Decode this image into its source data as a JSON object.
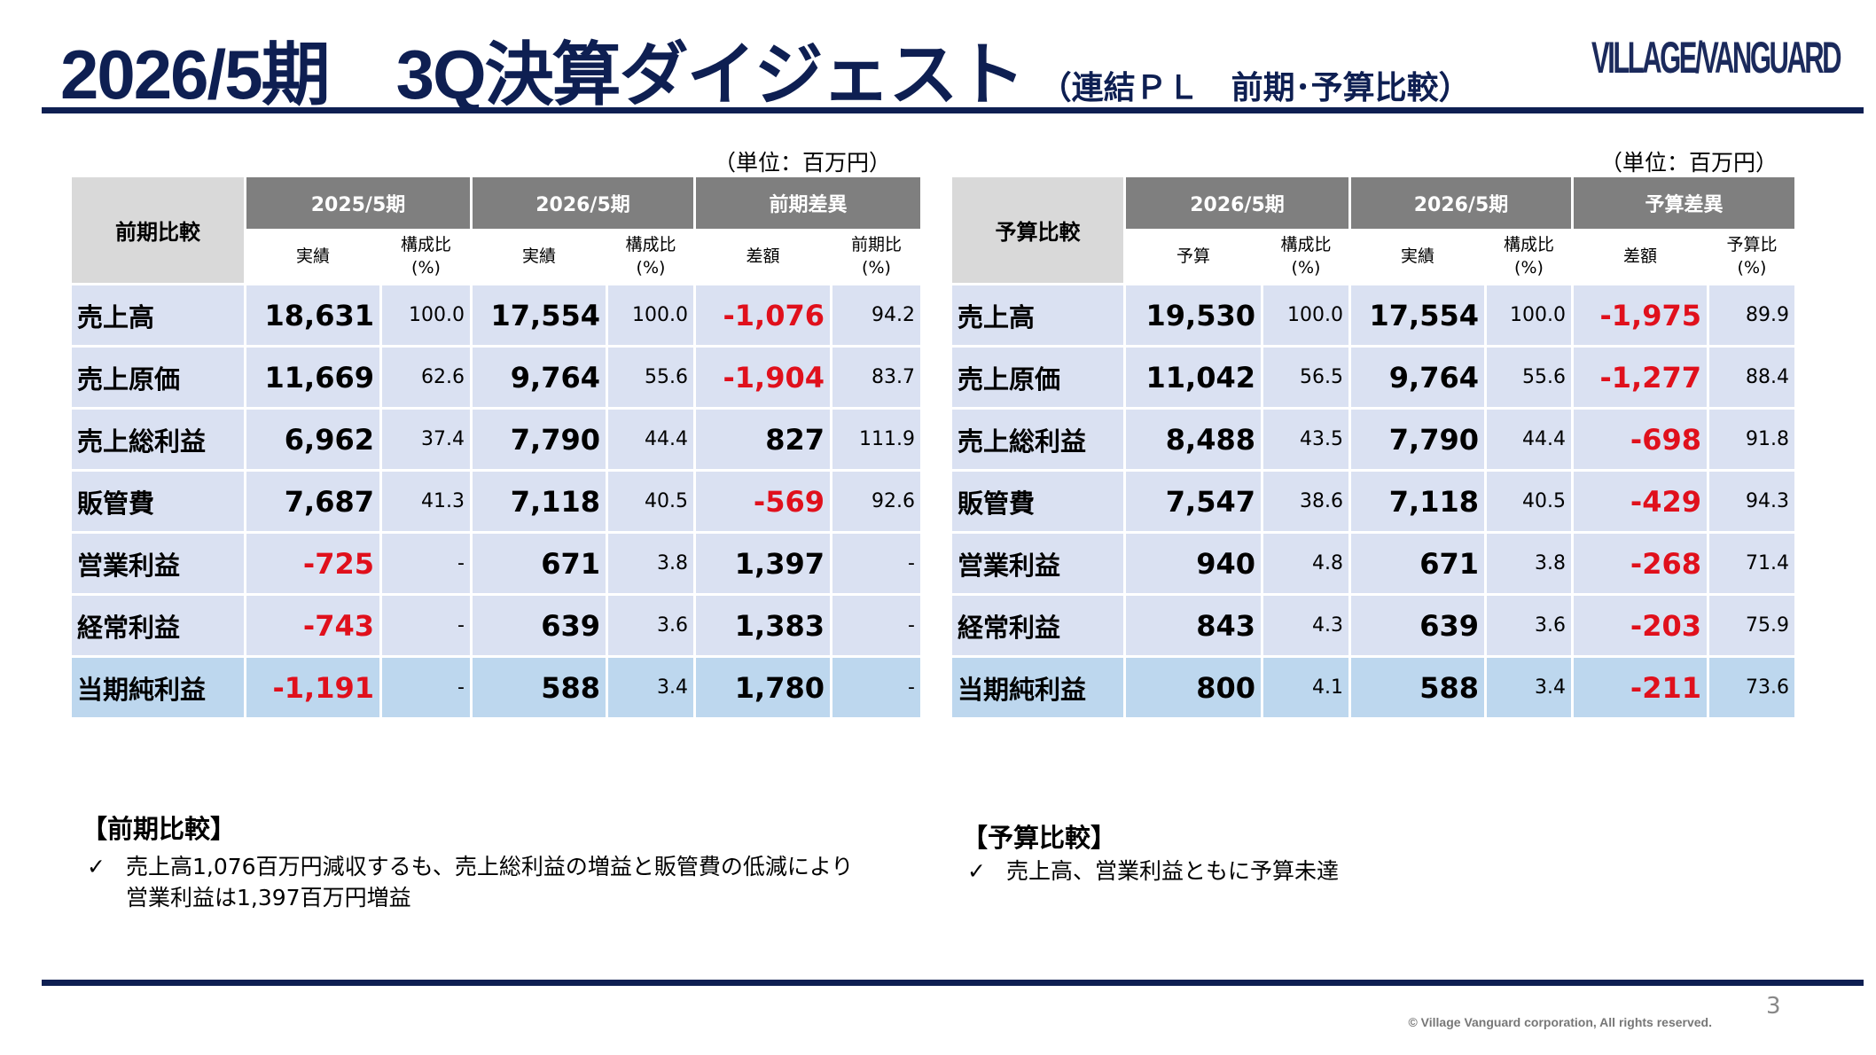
{
  "header": {
    "title": "2026/5期　3Q決算ダイジェスト",
    "subtitle": "（連結ＰＬ　前期･予算比較）",
    "logo": "VILLAGE/VANGUARD"
  },
  "left_table": {
    "unit": "（単位：百万円）",
    "corner": "前期比較",
    "groups": [
      "2025/5期",
      "2026/5期",
      "前期差異"
    ],
    "subheaders": [
      "実績",
      "構成比\n(%)",
      "実績",
      "構成比\n(%)",
      "差額",
      "前期比\n(%)"
    ],
    "rows": [
      {
        "label": "売上高",
        "cells": [
          "18,631",
          "100.0",
          "17,554",
          "100.0",
          "-1,076",
          "94.2"
        ]
      },
      {
        "label": "売上原価",
        "cells": [
          "11,669",
          "62.6",
          "9,764",
          "55.6",
          "-1,904",
          "83.7"
        ]
      },
      {
        "label": "売上総利益",
        "cells": [
          "6,962",
          "37.4",
          "7,790",
          "44.4",
          "827",
          "111.9"
        ]
      },
      {
        "label": "販管費",
        "cells": [
          "7,687",
          "41.3",
          "7,118",
          "40.5",
          "-569",
          "92.6"
        ]
      },
      {
        "label": "営業利益",
        "cells": [
          "-725",
          "-",
          "671",
          "3.8",
          "1,397",
          "-"
        ]
      },
      {
        "label": "経常利益",
        "cells": [
          "-743",
          "-",
          "639",
          "3.6",
          "1,383",
          "-"
        ]
      },
      {
        "label": "当期純利益",
        "cells": [
          "-1,191",
          "-",
          "588",
          "3.4",
          "1,780",
          "-"
        ]
      }
    ]
  },
  "right_table": {
    "unit": "（単位：百万円）",
    "corner": "予算比較",
    "groups": [
      "2026/5期",
      "2026/5期",
      "予算差異"
    ],
    "subheaders": [
      "予算",
      "構成比\n(%)",
      "実績",
      "構成比\n(%)",
      "差額",
      "予算比\n(%)"
    ],
    "rows": [
      {
        "label": "売上高",
        "cells": [
          "19,530",
          "100.0",
          "17,554",
          "100.0",
          "-1,975",
          "89.9"
        ]
      },
      {
        "label": "売上原価",
        "cells": [
          "11,042",
          "56.5",
          "9,764",
          "55.6",
          "-1,277",
          "88.4"
        ]
      },
      {
        "label": "売上総利益",
        "cells": [
          "8,488",
          "43.5",
          "7,790",
          "44.4",
          "-698",
          "91.8"
        ]
      },
      {
        "label": "販管費",
        "cells": [
          "7,547",
          "38.6",
          "7,118",
          "40.5",
          "-429",
          "94.3"
        ]
      },
      {
        "label": "営業利益",
        "cells": [
          "940",
          "4.8",
          "671",
          "3.8",
          "-268",
          "71.4"
        ]
      },
      {
        "label": "経常利益",
        "cells": [
          "843",
          "4.3",
          "639",
          "3.6",
          "-203",
          "75.9"
        ]
      },
      {
        "label": "当期純利益",
        "cells": [
          "800",
          "4.1",
          "588",
          "3.4",
          "-211",
          "73.6"
        ]
      }
    ]
  },
  "notes": {
    "left_title": "【前期比較】",
    "left_bullet_line1": "売上高1,076百万円減収するも、売上総利益の増益と販管費の低減により",
    "left_bullet_line2": "営業利益は1,397百万円増益",
    "right_title": "【予算比較】",
    "right_bullet": "売上高、営業利益ともに予算未達",
    "check": "✓"
  },
  "footer": {
    "copyright": "© Village Vanguard corporation, All rights reserved.",
    "page": "3"
  },
  "colors": {
    "navy": "#0e1f52",
    "negative": "#e0101c",
    "header_grey": "#7f7f7f",
    "row_bg": "#dae1f2",
    "total_row_bg": "#bdd7ee"
  }
}
